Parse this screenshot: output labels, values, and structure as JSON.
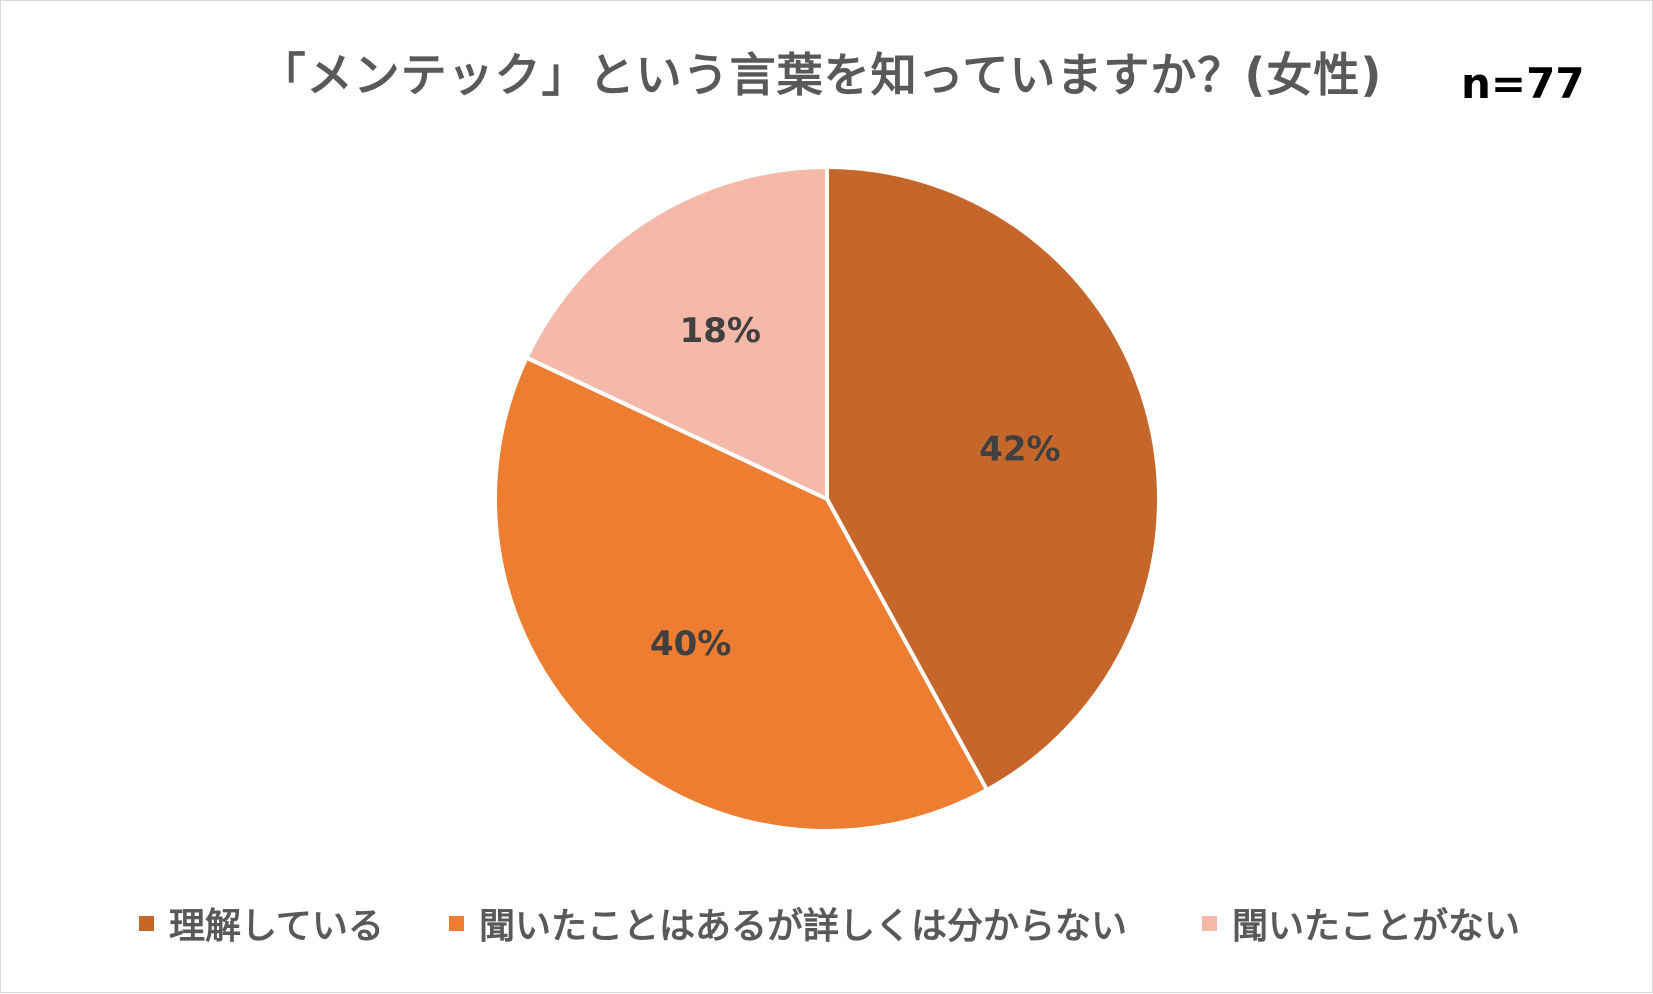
{
  "title": "「メンテック」という言葉を知っていますか？(女性)",
  "sample_size": "n=77",
  "chart_data": {
    "type": "pie",
    "title": "「メンテック」という言葉を知っていますか？(女性)",
    "annotation": "n=77",
    "start_angle_deg": 0,
    "direction": "clockwise",
    "legend_position": "bottom",
    "slices": [
      {
        "label": "理解している",
        "value": 42,
        "display": "42%",
        "color": "#C5672A"
      },
      {
        "label": "聞いたことはあるが詳しくは分からない",
        "value": 40,
        "display": "40%",
        "color": "#ED7D31"
      },
      {
        "label": "聞いたことがない",
        "value": 18,
        "display": "18%",
        "color": "#F4B9A8"
      }
    ]
  },
  "legend": {
    "items": [
      {
        "label": "理解している",
        "color": "#C5672A"
      },
      {
        "label": "聞いたことはあるが詳しくは分からない",
        "color": "#ED7D31"
      },
      {
        "label": "聞いたことがない",
        "color": "#F4B9A8"
      }
    ]
  },
  "colors": {
    "title": "#595959",
    "label": "#404040",
    "border": "#D9D9D9"
  }
}
